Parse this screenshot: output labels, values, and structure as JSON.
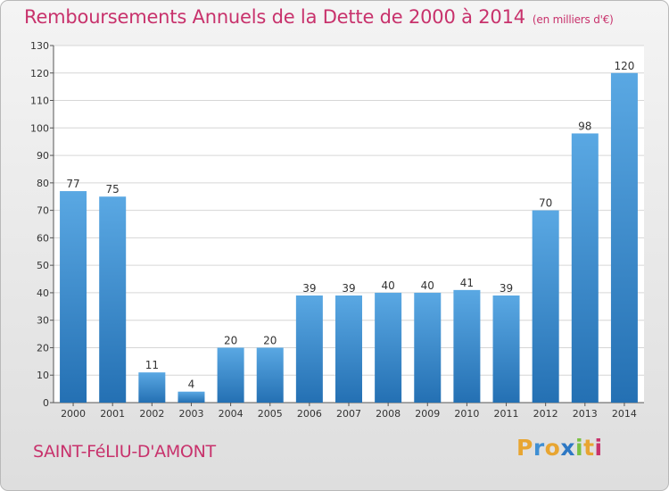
{
  "title": "Remboursements Annuels de la Dette de 2000 à 2014",
  "unit": "(en milliers d'€)",
  "location": "SAINT-FéLIU-D'AMONT",
  "logo": {
    "letters": [
      "P",
      "r",
      "o",
      "x",
      "i",
      "t",
      "i"
    ],
    "colors": [
      "#e8a531",
      "#3f8fd3",
      "#e8a531",
      "#2d78c4",
      "#7ac143",
      "#e8a531",
      "#c8326c"
    ]
  },
  "colors": {
    "bar": "#3d8fd0",
    "bar_light": "#5aa8e3",
    "bar_dark": "#2470b3",
    "title": "#c8326c"
  },
  "chart_data": {
    "type": "bar",
    "categories": [
      "2000",
      "2001",
      "2002",
      "2003",
      "2004",
      "2005",
      "2006",
      "2007",
      "2008",
      "2009",
      "2010",
      "2011",
      "2012",
      "2013",
      "2014"
    ],
    "values": [
      77,
      75,
      11,
      4,
      20,
      20,
      39,
      39,
      40,
      40,
      41,
      39,
      70,
      98,
      120
    ],
    "ylim": [
      0,
      130
    ],
    "yticks": [
      0,
      10,
      20,
      30,
      40,
      50,
      60,
      70,
      80,
      90,
      100,
      110,
      120,
      130
    ],
    "grid": true,
    "title": "Remboursements Annuels de la Dette de 2000 à 2014",
    "xlabel": "",
    "ylabel": ""
  }
}
